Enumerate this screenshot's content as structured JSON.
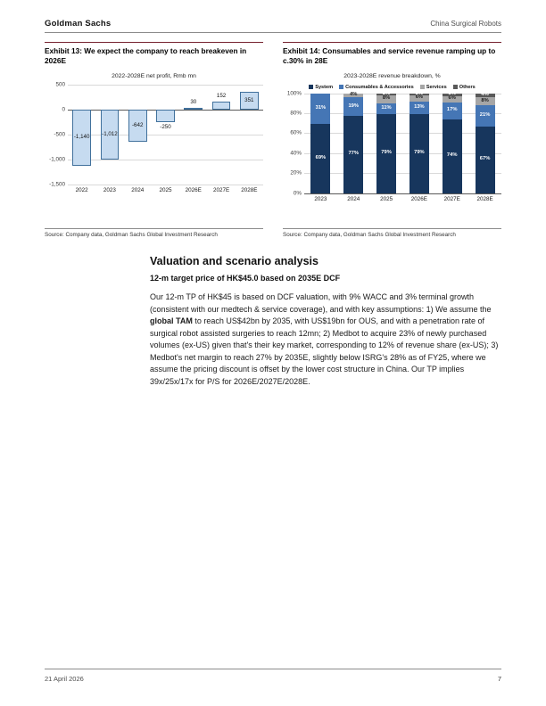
{
  "header": {
    "brand": "Goldman Sachs",
    "doc_title": "China Surgical Robots"
  },
  "exhibit13": {
    "title": "Exhibit 13: We expect the company to reach breakeven in 2026E",
    "source": "Source: Company data, Goldman Sachs Global Investment Research"
  },
  "exhibit14": {
    "title": "Exhibit 14: Consumables and service revenue ramping up to c.30% in 28E",
    "source": "Source: Company data, Goldman Sachs Global Investment Research"
  },
  "section": {
    "heading": "Valuation and scenario analysis",
    "subheading": "12-m target price of HK$45.0 based on 2035E DCF",
    "paragraph": [
      {
        "text": "Our 12-m TP of HK$45 is based on DCF valuation, with 9% WACC and 3% terminal growth (consistent with our medtech & service coverage), and with key assumptions: 1) We assume the ",
        "bold": false
      },
      {
        "text": "global TAM",
        "bold": true
      },
      {
        "text": " to reach US$42bn by 2035, with US$19bn for OUS, and with a penetration rate of surgical robot assisted surgeries to reach 12mn; 2) Medbot to acquire 23% of newly purchased volumes (ex-US) given that's their key market, corresponding to 12% of revenue share (ex-US); 3) Medbot's net margin to reach 27% by 2035E, slightly below ISRG's 28% as of FY25, where we assume the pricing discount is offset by the lower cost structure in China. Our TP implies 39x/25x/17x for P/S for 2026E/2027E/2028E.",
        "bold": false
      }
    ]
  },
  "footer": {
    "date": "21 April 2026",
    "page": "7"
  },
  "chart_data": [
    {
      "type": "bar",
      "title": "2022-2028E net profit, Rmb mn",
      "categories": [
        "2022",
        "2023",
        "2024",
        "2025",
        "2026E",
        "2027E",
        "2028E"
      ],
      "values": [
        -1140,
        -1012,
        -642,
        -250,
        30,
        152,
        351
      ],
      "labels": [
        "-1,140",
        "-1,012",
        "-642",
        "-250",
        "30",
        "152",
        "351"
      ],
      "ylim": [
        -1500,
        500
      ],
      "yticks": [
        500,
        0,
        -500,
        -1000,
        -1500
      ],
      "ytick_labels": [
        "500",
        "0",
        "-500",
        "-1,000",
        "-1,500"
      ],
      "bar_fill": "#c6dbf0",
      "bar_border": "#41719c",
      "grid": true,
      "ylabel": "",
      "xlabel": ""
    },
    {
      "type": "stacked-bar",
      "title": "2023-2028E revenue breakdown, %",
      "categories": [
        "2023",
        "2024",
        "2025",
        "2026E",
        "2027E",
        "2028E"
      ],
      "series": [
        {
          "name": "System",
          "color": "#17365d",
          "text_color": "#ffffff",
          "values": [
            69,
            77,
            79,
            79,
            74,
            67
          ]
        },
        {
          "name": "Consumables & Accessories",
          "color": "#4576b5",
          "text_color": "#ffffff",
          "values": [
            31,
            19,
            11,
            13,
            17,
            21
          ]
        },
        {
          "name": "Services",
          "color": "#a6a6a6",
          "text_color": "#1a1a1a",
          "values": [
            0,
            4,
            8,
            6,
            6,
            8
          ]
        },
        {
          "name": "Others",
          "color": "#595959",
          "text_color": "#ffffff",
          "values": [
            0,
            0,
            2,
            2,
            3,
            4
          ]
        }
      ],
      "ylim": [
        0,
        100
      ],
      "yticks": [
        0,
        20,
        40,
        60,
        80,
        100
      ],
      "ytick_labels": [
        "0%",
        "20%",
        "40%",
        "60%",
        "80%",
        "100%"
      ],
      "legend_position": "top",
      "grid": true
    }
  ]
}
